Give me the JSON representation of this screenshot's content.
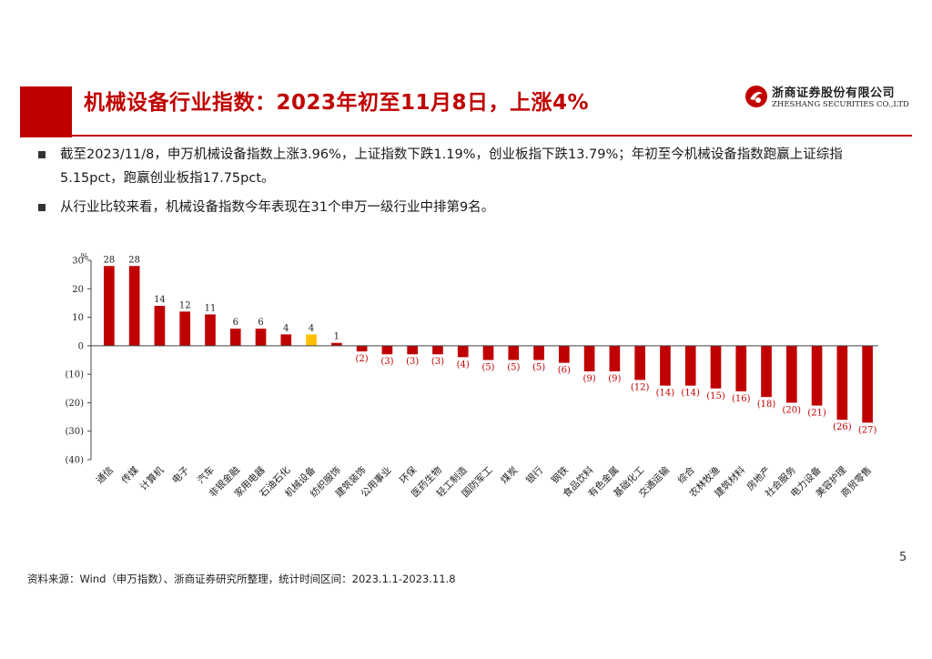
{
  "header": {
    "title": "机械设备行业指数：2023年初至11月8日，上涨4%",
    "logo_cn": "浙商证券股份有限公司",
    "logo_en": "ZHESHANG SECURITIES CO.,LTD"
  },
  "bullets": [
    "截至2023/11/8，申万机械设备指数上涨3.96%，上证指数下跌1.19%，创业板指下跌13.79%；年初至今机械设备指数跑赢上证综指5.15pct，跑赢创业板指17.75pct。",
    "从行业比较来看，机械设备指数今年表现在31个申万一级行业中排第9名。"
  ],
  "chart_data": {
    "type": "bar",
    "ylabel": "%",
    "ylim": [
      -40,
      30
    ],
    "yticks": [
      30,
      20,
      10,
      0,
      -10,
      -20,
      -30,
      -40
    ],
    "ytick_labels": [
      "30",
      "20",
      "10",
      "0",
      "(10)",
      "(20)",
      "(30)",
      "(40)"
    ],
    "grid": false,
    "legend": "none",
    "colors": {
      "default": "#c00000",
      "highlight": "#ffc000",
      "neg_label": "#c00000",
      "pos_label": "#222222"
    },
    "highlight_category": "机械设备",
    "categories": [
      "通信",
      "传媒",
      "计算机",
      "电子",
      "汽车",
      "非银金融",
      "家用电器",
      "石油石化",
      "机械设备",
      "纺织服饰",
      "建筑装饰",
      "公用事业",
      "环保",
      "医药生物",
      "轻工制造",
      "国防军工",
      "煤炭",
      "银行",
      "钢铁",
      "食品饮料",
      "有色金属",
      "基础化工",
      "交通运输",
      "综合",
      "农林牧渔",
      "建筑材料",
      "房地产",
      "社会服务",
      "电力设备",
      "美容护理",
      "商贸零售"
    ],
    "values": [
      28,
      28,
      14,
      12,
      11,
      6,
      6,
      4,
      4,
      1,
      -2,
      -3,
      -3,
      -3,
      -4,
      -5,
      -5,
      -5,
      -6,
      -9,
      -9,
      -12,
      -14,
      -14,
      -15,
      -16,
      -18,
      -20,
      -21,
      -26,
      -27
    ],
    "data_labels": [
      "28",
      "28",
      "14",
      "12",
      "11",
      "6",
      "6",
      "4",
      "4",
      "1",
      "(2)",
      "(3)",
      "(3)",
      "(3)",
      "(4)",
      "(5)",
      "(5)",
      "(5)",
      "(6)",
      "(9)",
      "(9)",
      "(12)",
      "(14)",
      "(14)",
      "(15)",
      "(16)",
      "(18)",
      "(20)",
      "(21)",
      "(26)",
      "(27)"
    ]
  },
  "footer": {
    "page_number": "5",
    "source": "资料来源：Wind（申万指数）、浙商证券研究所整理，统计时间区间：2023.1.1-2023.11.8"
  }
}
